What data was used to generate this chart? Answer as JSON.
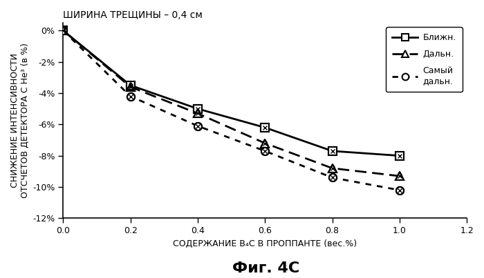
{
  "title": "ШИРИНА ТРЕЩИНЫ – 0,4 см",
  "xlabel": "СОДЕРЖАНИЕ B₄C В ПРОППАНТЕ (вес.%)",
  "ylabel": "СНИЖЕНИЕ ИНТЕНСИВНОСТИ\nОТСЧЕТОВ ДЕТЕКТОРА С He³ (в %)",
  "fig_label": "Фиг. 4C",
  "x": [
    0.0,
    0.2,
    0.4,
    0.6,
    0.8,
    1.0
  ],
  "y_near": [
    0.0,
    -3.5,
    -5.0,
    -6.2,
    -7.7,
    -8.0
  ],
  "y_far": [
    0.0,
    -3.6,
    -5.3,
    -7.2,
    -8.8,
    -9.3
  ],
  "y_farthest": [
    0.0,
    -4.2,
    -6.1,
    -7.7,
    -9.4,
    -10.2
  ],
  "label_near": "Ближн.",
  "label_far": "Дальн.",
  "label_farthest": "Самый\nдальн.",
  "xlim": [
    0.0,
    1.2
  ],
  "ylim": [
    -12.0,
    0.5
  ],
  "xticks": [
    0.0,
    0.2,
    0.4,
    0.6,
    0.8,
    1.0,
    1.2
  ],
  "yticks": [
    0,
    -2,
    -4,
    -6,
    -8,
    -10,
    -12
  ],
  "color": "#000000",
  "background": "#ffffff"
}
